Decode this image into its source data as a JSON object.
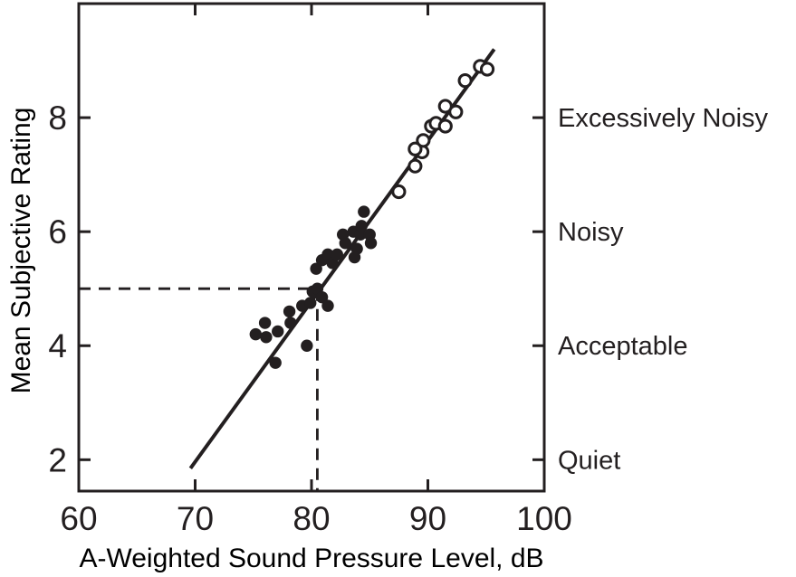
{
  "figure": {
    "background": "#ffffff",
    "ink_color": "#231f20"
  },
  "chart_data": {
    "type": "scatter",
    "title": "",
    "xlabel": "A-Weighted Sound Pressure Level, dB",
    "ylabel": "Mean Subjective Rating",
    "xlim": [
      60,
      100
    ],
    "ylim": [
      1.45,
      10
    ],
    "grid": false,
    "legend": "none",
    "x_tick_labels": [
      60,
      70,
      80,
      90,
      100
    ],
    "x_inner_ticks": [
      70,
      80,
      90
    ],
    "y_ticks": [
      2,
      4,
      6,
      8
    ],
    "right_axis_labels": [
      {
        "label": "Excessively Noisy",
        "value": 8
      },
      {
        "label": "Noisy",
        "value": 6
      },
      {
        "label": "Acceptable",
        "value": 4
      },
      {
        "label": "Quiet",
        "value": 2
      }
    ],
    "series": [
      {
        "name": "filled-circle ratings",
        "marker": "filled-circle",
        "points": [
          [
            75.2,
            4.2
          ],
          [
            76.0,
            4.4
          ],
          [
            76.1,
            4.15
          ],
          [
            77.1,
            4.25
          ],
          [
            76.9,
            3.7
          ],
          [
            78.1,
            4.6
          ],
          [
            78.2,
            4.4
          ],
          [
            79.2,
            4.7
          ],
          [
            79.9,
            4.75
          ],
          [
            79.6,
            4.0
          ],
          [
            80.1,
            4.95
          ],
          [
            80.5,
            5.0
          ],
          [
            80.9,
            4.85
          ],
          [
            81.4,
            4.7
          ],
          [
            80.4,
            5.35
          ],
          [
            80.9,
            5.5
          ],
          [
            81.4,
            5.6
          ],
          [
            81.8,
            5.45
          ],
          [
            82.2,
            5.6
          ],
          [
            82.9,
            5.8
          ],
          [
            82.7,
            5.95
          ],
          [
            83.6,
            6.0
          ],
          [
            83.9,
            5.7
          ],
          [
            83.7,
            5.55
          ],
          [
            84.2,
            5.95
          ],
          [
            84.3,
            6.1
          ],
          [
            84.5,
            6.35
          ],
          [
            85.0,
            5.95
          ],
          [
            85.1,
            5.8
          ]
        ]
      },
      {
        "name": "open-circle ratings",
        "marker": "open-circle",
        "points": [
          [
            87.5,
            6.7
          ],
          [
            88.9,
            7.15
          ],
          [
            89.5,
            7.4
          ],
          [
            88.9,
            7.45
          ],
          [
            89.6,
            7.6
          ],
          [
            90.3,
            7.85
          ],
          [
            90.7,
            7.9
          ],
          [
            91.5,
            7.85
          ],
          [
            91.5,
            8.2
          ],
          [
            92.4,
            8.1
          ],
          [
            93.2,
            8.65
          ],
          [
            94.5,
            8.9
          ],
          [
            95.1,
            8.85
          ]
        ]
      }
    ],
    "regression_line": {
      "x1": 69.6,
      "y1": 1.85,
      "x2": 95.7,
      "y2": 9.2
    },
    "reference_dashed": {
      "rating": 5,
      "level_db": 80.5
    }
  }
}
